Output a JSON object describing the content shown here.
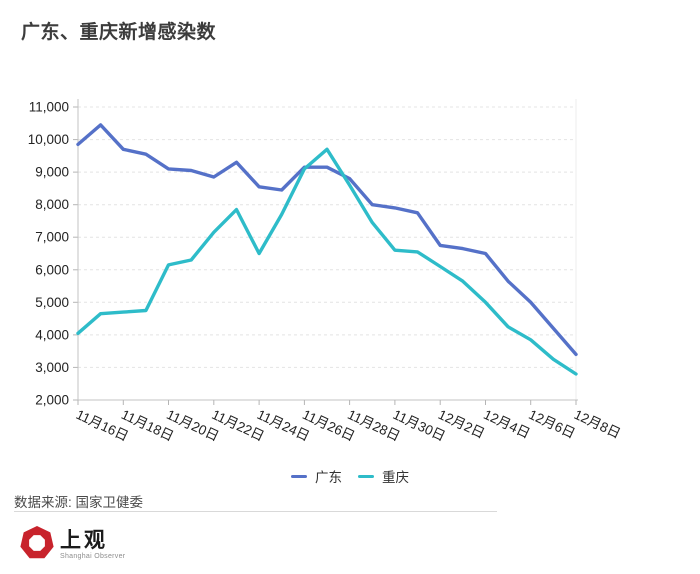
{
  "title": "广东、重庆新增感染数",
  "source_note": "数据来源: 国家卫健委",
  "logo": {
    "name": "上观",
    "subtitle": "Shanghai Observer",
    "badge_color": "#c8232c"
  },
  "chart_data": {
    "type": "line",
    "title": "广东、重庆新增感染数",
    "categories": [
      "11月16日",
      "11月17日",
      "11月18日",
      "11月19日",
      "11月20日",
      "11月21日",
      "11月22日",
      "11月23日",
      "11月24日",
      "11月25日",
      "11月26日",
      "11月27日",
      "11月28日",
      "11月29日",
      "11月30日",
      "12月1日",
      "12月2日",
      "12月3日",
      "12月4日",
      "12月5日",
      "12月6日",
      "12月7日",
      "12月8日"
    ],
    "series": [
      {
        "name": "广东",
        "color": "#5571c8",
        "values": [
          9850,
          10450,
          9700,
          9550,
          9100,
          9050,
          8850,
          9300,
          8550,
          8450,
          9150,
          9150,
          8800,
          8000,
          7900,
          7750,
          6750,
          6650,
          6500,
          5650,
          5000,
          4200,
          3400
        ]
      },
      {
        "name": "重庆",
        "color": "#2ebcc9",
        "values": [
          4050,
          4650,
          4700,
          4750,
          6150,
          6300,
          7150,
          7850,
          6500,
          7700,
          9100,
          9700,
          8600,
          7450,
          6600,
          6550,
          6100,
          5650,
          5000,
          4250,
          3850,
          3250,
          2800
        ]
      }
    ],
    "xlabel": "",
    "ylabel": "",
    "ylim": [
      2000,
      11000
    ],
    "ytick_step": 1000,
    "x_label_every": 2,
    "x_label_rotation_deg": 25,
    "grid": "horizontal-dashed",
    "legend_position": "bottom-center"
  }
}
